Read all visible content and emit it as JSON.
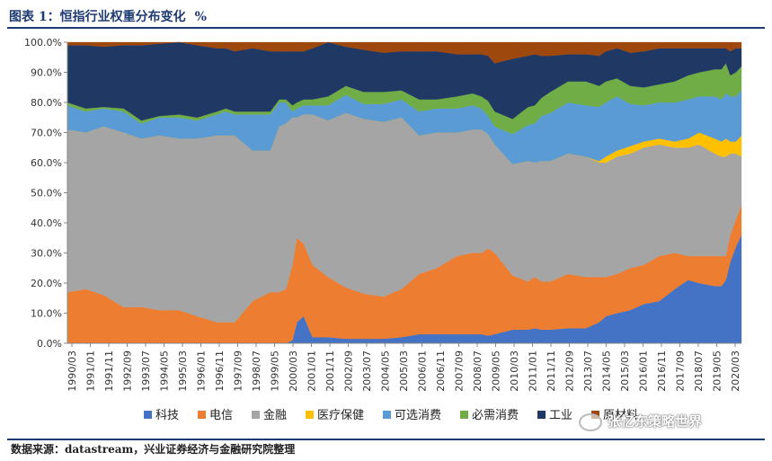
{
  "header": {
    "title": "图表 1：恒指行业权重分布变化",
    "unit": "%"
  },
  "footer": {
    "source": "数据来源：datastream，兴业证券经济与金融研究院整理"
  },
  "watermark": {
    "text": "张忆东策略世界"
  },
  "chart_data": {
    "type": "area",
    "stacked": true,
    "title": "恒指行业权重分布变化",
    "ylabel": "%",
    "ylim": [
      0,
      100
    ],
    "yticks": [
      "0.0%",
      "10.0%",
      "20.0%",
      "30.0%",
      "40.0%",
      "50.0%",
      "60.0%",
      "70.0%",
      "80.0%",
      "90.0%",
      "100.0%"
    ],
    "x_tick_labels": [
      "1990/03",
      "1991/01",
      "1991/11",
      "1992/09",
      "1993/07",
      "1994/05",
      "1995/03",
      "1996/01",
      "1996/11",
      "1997/09",
      "1998/07",
      "1999/05",
      "2000/03",
      "2001/01",
      "2001/11",
      "2002/09",
      "2003/07",
      "2004/05",
      "2005/03",
      "2006/01",
      "2006/11",
      "2007/09",
      "2008/07",
      "2009/05",
      "2010/03",
      "2011/01",
      "2011/11",
      "2012/09",
      "2013/07",
      "2014/05",
      "2015/03",
      "2016/01",
      "2016/11",
      "2017/09",
      "2018/07",
      "2019/05",
      "2020/03"
    ],
    "x_range": [
      1990.17,
      2020.5
    ],
    "x": [
      1990.17,
      1991.0,
      1991.8,
      1992.7,
      1993.5,
      1994.3,
      1995.2,
      1996.0,
      1996.9,
      1997.3,
      1997.7,
      1998.5,
      1999.3,
      1999.7,
      2000.0,
      2000.3,
      2000.5,
      2000.8,
      2001.2,
      2001.9,
      2002.7,
      2003.5,
      2004.4,
      2005.2,
      2006.0,
      2006.8,
      2007.7,
      2008.4,
      2008.8,
      2009.1,
      2009.4,
      2010.2,
      2010.9,
      2011.2,
      2011.5,
      2011.9,
      2012.7,
      2013.5,
      2014.1,
      2014.4,
      2014.9,
      2015.5,
      2016.1,
      2016.8,
      2017.5,
      2018.1,
      2018.6,
      2019.3,
      2019.6,
      2019.8,
      2020.0,
      2020.25,
      2020.5
    ],
    "series": [
      {
        "name": "科技",
        "color": "#4472c4",
        "values": [
          0,
          0,
          0,
          0,
          0,
          0,
          0,
          0,
          0,
          0,
          0,
          0,
          0,
          0,
          0,
          1,
          7,
          9,
          2,
          2,
          1.5,
          1.5,
          1.5,
          2,
          3,
          3,
          3,
          3,
          3,
          2.5,
          3,
          4.5,
          4.5,
          5,
          4.5,
          4.5,
          5,
          5,
          7,
          9,
          10,
          11,
          13,
          14,
          18,
          21,
          20,
          19,
          19,
          21,
          27,
          32,
          36
        ]
      },
      {
        "name": "电信",
        "color": "#ed7d31",
        "values": [
          17,
          18,
          16,
          12,
          12,
          11,
          11,
          9,
          7,
          7,
          7,
          14,
          17,
          17,
          18,
          25,
          28,
          24,
          24,
          20,
          17,
          15,
          14,
          16,
          20,
          22,
          26,
          27,
          27,
          29,
          27,
          18,
          16,
          17,
          16,
          16,
          18,
          17,
          15,
          13,
          13,
          14,
          13,
          15,
          12,
          8,
          9,
          10,
          10,
          8,
          9,
          9,
          10
        ]
      },
      {
        "name": "金融",
        "color": "#a5a5a5",
        "values": [
          54,
          52,
          56,
          58,
          56,
          58,
          57,
          59,
          62,
          62,
          62,
          50,
          47,
          55,
          55,
          49,
          40,
          43,
          50,
          52,
          58,
          58,
          58,
          57,
          46,
          45,
          41,
          41,
          41,
          38,
          36,
          37,
          40,
          38,
          40,
          40,
          40,
          40,
          38,
          38,
          39,
          38,
          39,
          37,
          35,
          36,
          37,
          34,
          33,
          33,
          27,
          22,
          16
        ]
      },
      {
        "name": "医疗保健",
        "color": "#ffc000",
        "values": [
          0,
          0,
          0,
          0,
          0,
          0,
          0,
          0,
          0,
          0,
          0,
          0,
          0,
          0,
          0,
          0,
          0,
          0,
          0,
          0,
          0,
          0,
          0,
          0,
          0,
          0,
          0,
          0,
          0,
          0,
          0,
          0,
          0,
          0,
          0,
          0,
          0,
          0,
          0.5,
          2,
          2,
          2.5,
          2,
          2,
          2,
          3,
          4,
          5,
          5,
          6,
          4,
          4,
          7
        ]
      },
      {
        "name": "可选消费",
        "color": "#5b9bd5",
        "values": [
          8,
          7,
          6,
          7,
          5,
          6,
          7,
          6,
          7,
          8,
          7,
          12,
          12,
          8,
          7,
          2,
          3,
          3,
          3,
          5,
          6,
          5,
          6,
          6,
          8,
          8,
          8,
          8,
          7,
          6,
          6,
          10,
          12,
          13,
          15,
          16,
          17,
          17,
          18,
          18,
          18,
          14,
          12,
          12,
          13,
          13,
          12,
          14,
          14,
          15,
          15,
          15,
          15
        ]
      },
      {
        "name": "必需消费",
        "color": "#70ad47",
        "values": [
          1,
          1,
          0.5,
          1,
          1,
          0.5,
          1,
          1,
          1,
          1,
          1,
          1,
          1,
          1,
          1,
          2,
          2,
          2,
          2,
          3,
          3,
          4,
          4,
          3,
          4,
          3,
          4,
          4,
          4,
          5,
          5,
          5,
          6,
          6,
          6,
          7,
          7,
          8,
          7,
          7,
          6,
          6,
          6,
          6,
          7,
          8,
          8,
          9,
          10,
          10,
          7,
          8,
          8
        ]
      },
      {
        "name": "工业",
        "color": "#203864",
        "values": [
          19,
          21,
          20,
          21,
          25,
          24,
          24,
          24,
          21,
          20,
          20,
          21,
          20,
          16,
          16,
          18,
          17,
          16,
          17,
          18,
          13,
          14,
          13,
          13,
          16,
          16,
          14,
          13,
          14,
          15,
          16,
          20,
          17,
          17,
          14,
          12,
          9,
          9,
          10,
          10,
          10,
          11,
          12,
          12,
          11,
          9,
          8,
          7,
          7,
          5,
          8,
          8,
          6
        ]
      },
      {
        "name": "原材料",
        "color": "#9e480e",
        "values": [
          1,
          1,
          1.5,
          1,
          1,
          0.5,
          0,
          1,
          2,
          2,
          3,
          2,
          3,
          3,
          3,
          3,
          3,
          3,
          2,
          0,
          1.5,
          2.5,
          3.5,
          3,
          3,
          3,
          4,
          4,
          4,
          4.5,
          7,
          5.5,
          4.5,
          4,
          4.5,
          4.5,
          4,
          4,
          4.5,
          3,
          2,
          3.5,
          3,
          2,
          2,
          2,
          2,
          2,
          2,
          2,
          3,
          2,
          2
        ]
      }
    ]
  }
}
